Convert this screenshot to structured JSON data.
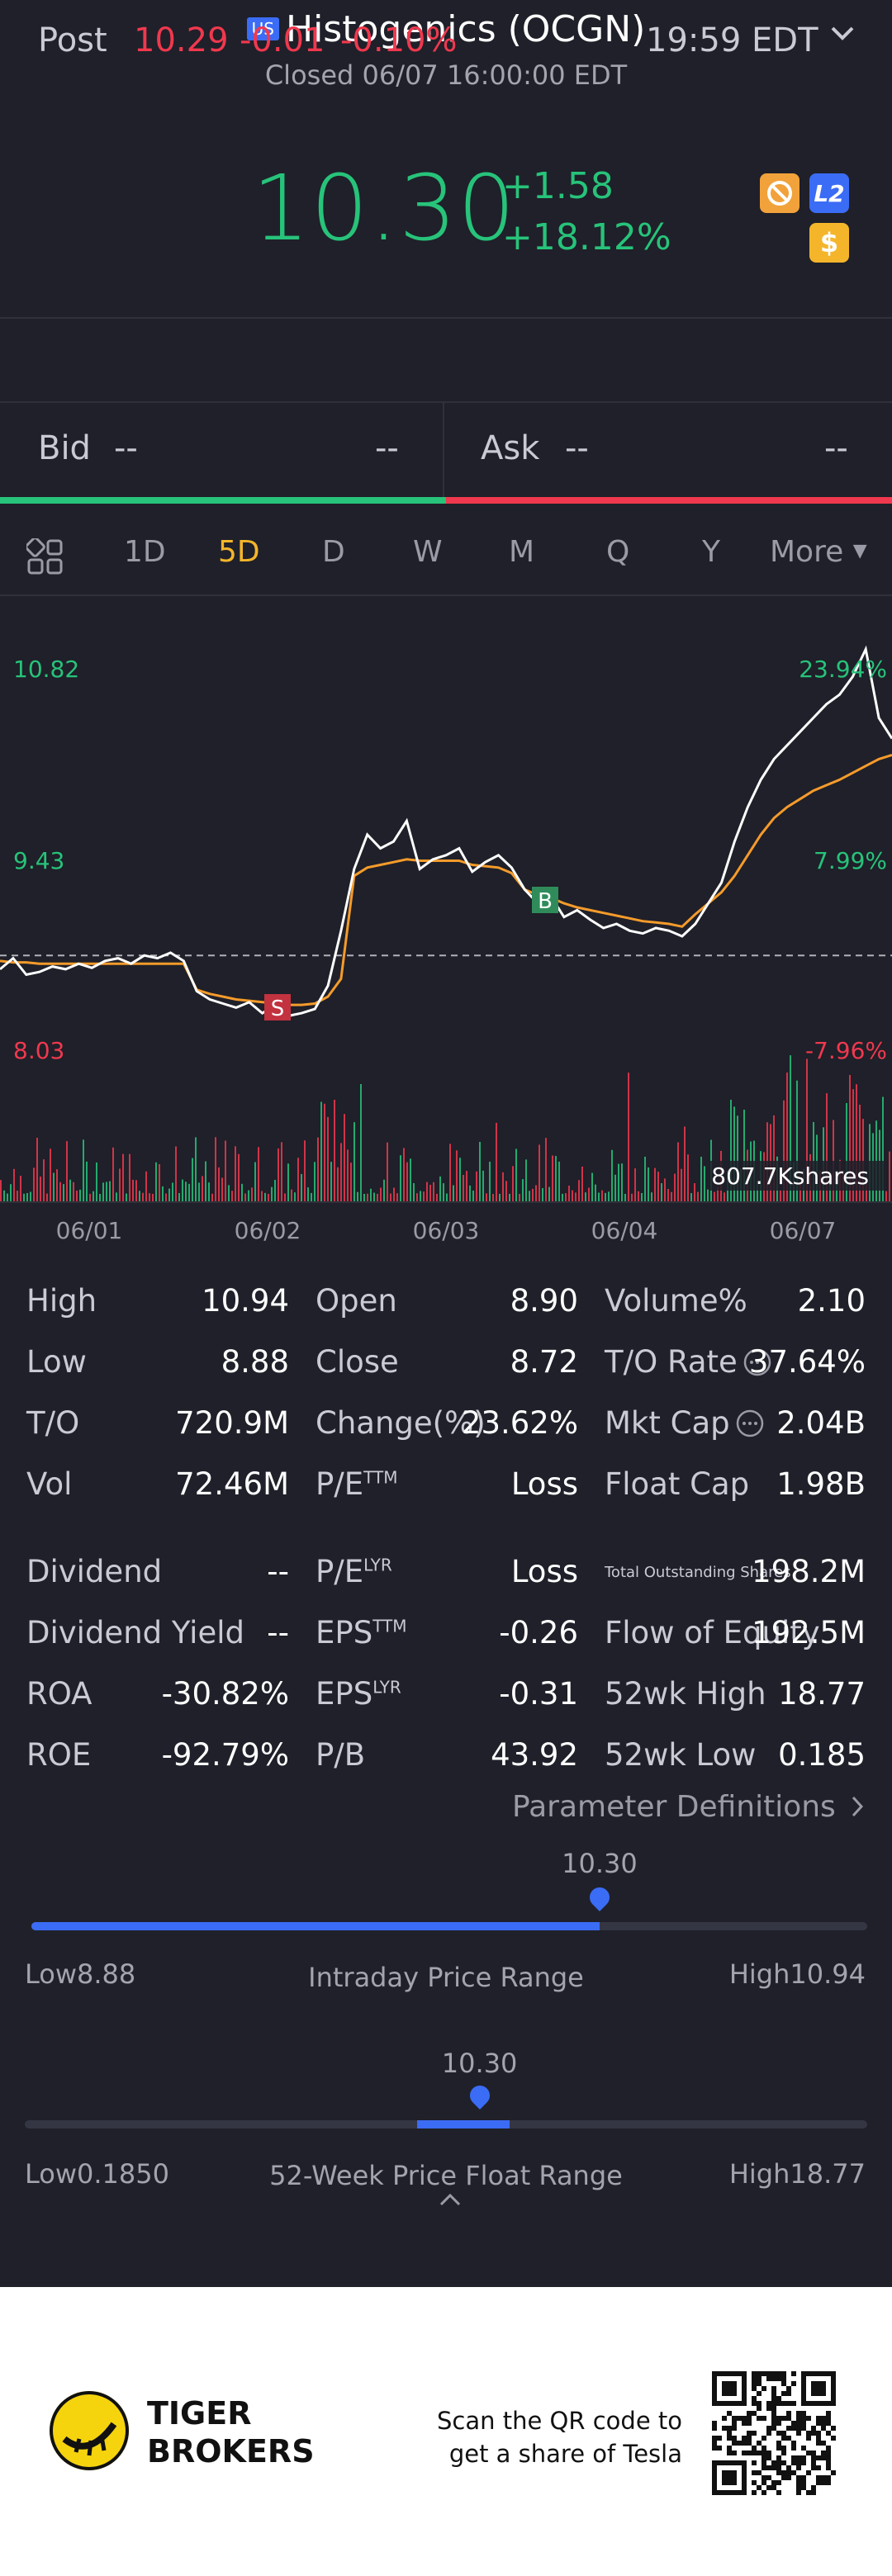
{
  "header": {
    "market_badge": "US",
    "title": "Histogenics (OCGN)",
    "subtitle": "Closed 06/07 16:00:00 EDT"
  },
  "quote": {
    "price": "10.30",
    "change": "+1.58",
    "change_pct": "+18.12%"
  },
  "header_icons": [
    "no-entry-icon",
    "level2-icon",
    "dollar-icon"
  ],
  "level2_label": "L2",
  "dollar_label": "$",
  "post": {
    "label": "Post",
    "price": "10.29",
    "change": "-0.01",
    "change_pct": "-0.10%",
    "time": "19:59 EDT"
  },
  "bidask": {
    "bid_label": "Bid",
    "bid_price": "--",
    "bid_size": "--",
    "ask_label": "Ask",
    "ask_price": "--",
    "ask_size": "--"
  },
  "tabs": [
    "1D",
    "5D",
    "D",
    "W",
    "M",
    "Q",
    "Y",
    "More"
  ],
  "active_tab": "5D",
  "chart_data": {
    "type": "line",
    "y_labels_left": [
      "10.82",
      "9.43",
      "8.03"
    ],
    "y_labels_right": [
      "23.94%",
      "7.99%",
      "-7.96%"
    ],
    "x_labels": [
      "06/01",
      "06/02",
      "06/03",
      "06/04",
      "06/07"
    ],
    "reference_price": 8.72,
    "ylim": [
      8.03,
      10.82
    ],
    "volume_label": "807.7Kshares",
    "markers": [
      {
        "label": "S",
        "date": "06/02"
      },
      {
        "label": "B",
        "date": "06/03"
      }
    ],
    "series": [
      {
        "values": [
          8.62,
          8.7,
          8.58,
          8.6,
          8.64,
          8.62,
          8.66,
          8.63,
          8.68,
          8.7,
          8.66,
          8.72,
          8.7,
          8.74,
          8.68,
          8.46,
          8.4,
          8.37,
          8.34,
          8.38,
          8.3,
          8.36,
          8.28,
          8.3,
          8.33,
          8.5,
          8.9,
          9.35,
          9.6,
          9.5,
          9.55,
          9.7,
          9.35,
          9.42,
          9.45,
          9.5,
          9.33,
          9.4,
          9.45,
          9.36,
          9.2,
          9.1,
          9.15,
          9.0,
          9.05,
          8.98,
          8.92,
          8.95,
          8.9,
          8.88,
          8.92,
          8.9,
          8.86,
          8.95,
          9.1,
          9.25,
          9.55,
          9.8,
          10.0,
          10.15,
          10.25,
          10.35,
          10.45,
          10.55,
          10.62,
          10.75,
          10.95,
          10.45,
          10.3
        ]
      },
      {
        "values": [
          8.68,
          8.67,
          8.67,
          8.66,
          8.66,
          8.66,
          8.66,
          8.66,
          8.66,
          8.66,
          8.66,
          8.66,
          8.66,
          8.66,
          8.66,
          8.47,
          8.44,
          8.42,
          8.4,
          8.39,
          8.38,
          8.37,
          8.36,
          8.36,
          8.37,
          8.42,
          8.55,
          9.3,
          9.36,
          9.38,
          9.4,
          9.42,
          9.41,
          9.41,
          9.41,
          9.41,
          9.38,
          9.37,
          9.36,
          9.32,
          9.2,
          9.16,
          9.14,
          9.1,
          9.07,
          9.05,
          9.03,
          9.01,
          8.99,
          8.97,
          8.96,
          8.95,
          8.93,
          9.02,
          9.1,
          9.18,
          9.3,
          9.45,
          9.6,
          9.72,
          9.8,
          9.86,
          9.92,
          9.96,
          10.0,
          10.05,
          10.1,
          10.15,
          10.18
        ]
      }
    ]
  },
  "stats": [
    {
      "label": "High",
      "value": "10.94"
    },
    {
      "label": "Open",
      "value": "8.90"
    },
    {
      "label": "Volume%",
      "value": "2.10"
    },
    {
      "label": "Low",
      "value": "8.88"
    },
    {
      "label": "Close",
      "value": "8.72"
    },
    {
      "label": "T/O Rate",
      "value": "37.64%"
    },
    {
      "label": "T/O",
      "value": "720.9M"
    },
    {
      "label": "Change(%)",
      "value": "23.62%"
    },
    {
      "label": "Mkt Cap",
      "value": "2.04B"
    },
    {
      "label": "Vol",
      "value": "72.46M"
    },
    {
      "label": "P/E",
      "sup": "TTM",
      "value": "Loss"
    },
    {
      "label": "Float Cap",
      "value": "1.98B"
    },
    {
      "label": "Dividend",
      "value": "--"
    },
    {
      "label": "P/E",
      "sup": "LYR",
      "value": "Loss"
    },
    {
      "label": "Total Outstanding Shares",
      "value": "198.2M"
    },
    {
      "label": "Dividend Yield",
      "value": "--"
    },
    {
      "label": "EPS",
      "sup": "TTM",
      "value": "-0.26"
    },
    {
      "label": "Flow of Equity",
      "value": "192.5M"
    },
    {
      "label": "ROA",
      "value": "-30.82%"
    },
    {
      "label": "EPS",
      "sup": "LYR",
      "value": "-0.31"
    },
    {
      "label": "52wk High",
      "value": "18.77"
    },
    {
      "label": "ROE",
      "value": "-92.79%"
    },
    {
      "label": "P/B",
      "value": "43.92"
    },
    {
      "label": "52wk Low",
      "value": "0.185"
    }
  ],
  "param_link": "Parameter Definitions",
  "intraday": {
    "current": "10.30",
    "low": "Low8.88",
    "high": "High10.94",
    "title": "Intraday Price Range",
    "position": 0.68
  },
  "week52": {
    "current": "10.30",
    "low": "Low0.1850",
    "high": "High18.77",
    "title": "52-Week Price Float Range",
    "position": 0.54
  },
  "footer": {
    "brand_line1": "TIGER",
    "brand_line2": "BROKERS",
    "qr_line1": "Scan the QR code to",
    "qr_line2": "get a share of Tesla"
  },
  "colors": {
    "up": "#27c37a",
    "down": "#f0384e",
    "accent": "#3b6cf5",
    "avg_line": "#f59b2b",
    "active_tab": "#f5b52b"
  }
}
